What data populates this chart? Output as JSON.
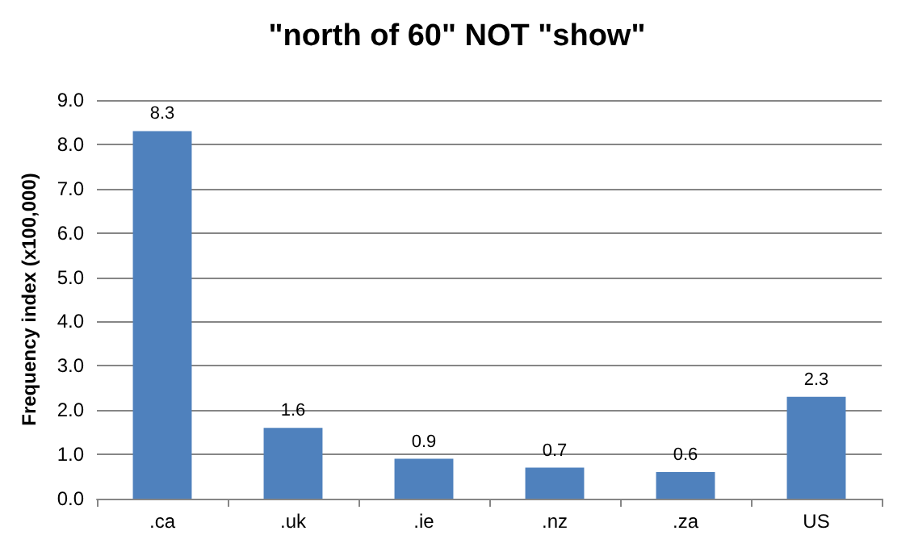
{
  "chart_data": {
    "type": "bar",
    "title": "\"north of 60\" NOT \"show\"",
    "ylabel": "Frequency index (x100,000)",
    "categories": [
      ".ca",
      ".uk",
      ".ie",
      ".nz",
      ".za",
      "US"
    ],
    "values": [
      8.3,
      1.6,
      0.9,
      0.7,
      0.6,
      2.3
    ],
    "color": "#4f81bd",
    "ylim": [
      0,
      9
    ],
    "yticks": [
      {
        "value": 0,
        "label": "0.0"
      },
      {
        "value": 1,
        "label": "1.0"
      },
      {
        "value": 2,
        "label": "2.0"
      },
      {
        "value": 3,
        "label": "3.0"
      },
      {
        "value": 4,
        "label": "4.0"
      },
      {
        "value": 5,
        "label": "5.0"
      },
      {
        "value": 6,
        "label": "6.0"
      },
      {
        "value": 7,
        "label": "7.0"
      },
      {
        "value": 8,
        "label": "8.0"
      },
      {
        "value": 9,
        "label": "9.0"
      }
    ],
    "grid": "y",
    "data_labels": true
  }
}
